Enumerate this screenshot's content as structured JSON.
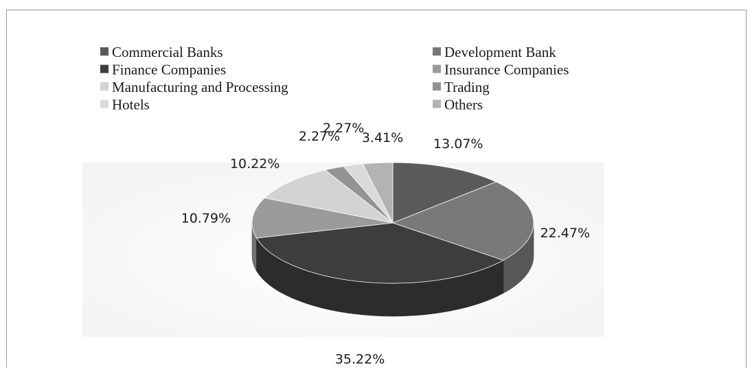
{
  "chart_data": {
    "type": "pie",
    "style": "3d",
    "legend_position": "top",
    "categories": [
      "Commercial Banks",
      "Development Bank",
      "Finance Companies",
      "Insurance Companies",
      "Manufacturing and Processing",
      "Trading",
      "Hotels",
      "Others"
    ],
    "values": [
      13.07,
      22.47,
      35.22,
      10.79,
      10.22,
      2.27,
      2.27,
      3.41
    ],
    "labels": [
      "13.07%",
      "22.47%",
      "35.22%",
      "10.79%",
      "10.22%",
      "2.27%",
      "2.27%",
      "3.41%"
    ],
    "colors": [
      "#5a5a5a",
      "#797979",
      "#3d3d3d",
      "#9b9b9b",
      "#d3d3d3",
      "#939393",
      "#dadada",
      "#b3b3b3"
    ]
  }
}
